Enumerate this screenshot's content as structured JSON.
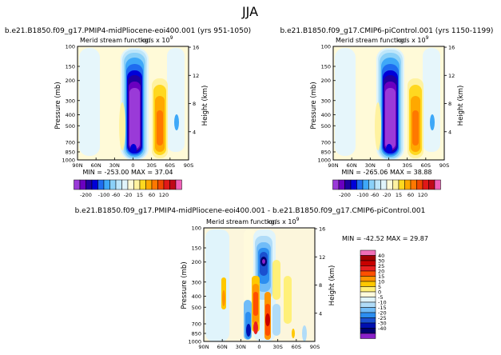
{
  "figure": {
    "title": "JJA",
    "stat_sep": "MAX =",
    "stat_min_prefix": "MIN =",
    "scale_label": "kg/s x 10",
    "scale_exp": "9",
    "ylabel_pressure": "Pressure  (mb)",
    "ylabel_height": "Height  (km)"
  },
  "chart_data": [
    {
      "id": "p1",
      "type": "contour",
      "case_title": "b.e21.B1850.f09_g17.PMIP4-midPliocene-eoi400.001  (yrs 951-1050)",
      "variable": "Merid stream function",
      "units": "kg/s x 10^9",
      "min": "-253.00",
      "max": "37.04",
      "x_ticks": [
        "90N",
        "60N",
        "30N",
        "0",
        "30S",
        "60S",
        "90S"
      ],
      "y_ticks": [
        "100",
        "150",
        "200",
        "300",
        "400",
        "500",
        "700",
        "850",
        "1000"
      ],
      "height_ticks": [
        "16",
        "12",
        "8",
        "4"
      ],
      "colorbar_labels": [
        "-200",
        "-100",
        "-60",
        "-20",
        "15",
        "60",
        "120"
      ],
      "features": [
        {
          "lat": -1,
          "p": 420,
          "value": -253,
          "role": "Hadley cell minimum"
        },
        {
          "lat": -35,
          "p": 550,
          "value": 37.04,
          "role": "southern cell maximum"
        }
      ]
    },
    {
      "id": "p2",
      "type": "contour",
      "case_title": "b.e21.B1850.f09_g17.CMIP6-piControl.001  (yrs 1150-1199)",
      "variable": "Merid stream function",
      "units": "kg/s x 10^9",
      "min": "-265.06",
      "max": "38.88",
      "x_ticks": [
        "90N",
        "60N",
        "30N",
        "0",
        "30S",
        "60S",
        "90S"
      ],
      "y_ticks": [
        "100",
        "150",
        "200",
        "300",
        "400",
        "500",
        "700",
        "850",
        "1000"
      ],
      "height_ticks": [
        "16",
        "12",
        "8",
        "4"
      ],
      "colorbar_labels": [
        "-200",
        "-100",
        "-60",
        "-20",
        "15",
        "60",
        "120"
      ],
      "features": [
        {
          "lat": -1,
          "p": 420,
          "value": -265.06,
          "role": "Hadley cell minimum"
        },
        {
          "lat": -35,
          "p": 550,
          "value": 38.88,
          "role": "southern cell maximum"
        }
      ]
    },
    {
      "id": "diff",
      "type": "contour",
      "case_title": "b.e21.B1850.f09_g17.PMIP4-midPliocene-eoi400.001  -  b.e21.B1850.f09_g17.CMIP6-piControl.001",
      "variable": "Merid stream function",
      "units": "kg/s x 10^9",
      "min": "-42.52",
      "max": "29.87",
      "x_ticks": [
        "90N",
        "60N",
        "30N",
        "0",
        "30S",
        "60S",
        "90S"
      ],
      "y_ticks": [
        "100",
        "150",
        "200",
        "300",
        "400",
        "500",
        "700",
        "850",
        "1000"
      ],
      "height_ticks": [
        "16",
        "12",
        "8",
        "4"
      ],
      "colorbar_labels": [
        "40",
        "30",
        "25",
        "20",
        "15",
        "10",
        "5",
        "0",
        "-5",
        "-10",
        "-15",
        "-20",
        "-25",
        "-30",
        "-40"
      ]
    }
  ],
  "palettes": {
    "abs": [
      "#9a3ad8",
      "#6a00c0",
      "#1e00a0",
      "#0000d8",
      "#1e6cf0",
      "#3ea8f8",
      "#8ad0f8",
      "#bee6fa",
      "#e0f4fb",
      "#fffad8",
      "#fff2a0",
      "#ffd820",
      "#ffa800",
      "#ff7800",
      "#f04800",
      "#e01818",
      "#c00818",
      "#f060b8"
    ],
    "diff": [
      "#f070b8",
      "#a00000",
      "#c80000",
      "#e82020",
      "#ff5000",
      "#ff9600",
      "#ffc800",
      "#fff078",
      "#fffadc",
      "#e0f4fb",
      "#b0dcf8",
      "#70bcf8",
      "#2c8ef0",
      "#1a50d0",
      "#0010b0",
      "#000070",
      "#8a20c8"
    ],
    "fill_colors": {
      "white": "#ffffff",
      "neutral_pos": "#fffad8",
      "neutral_neg": "#e6f6fb",
      "diff_bg": "#fcf6dc"
    }
  }
}
